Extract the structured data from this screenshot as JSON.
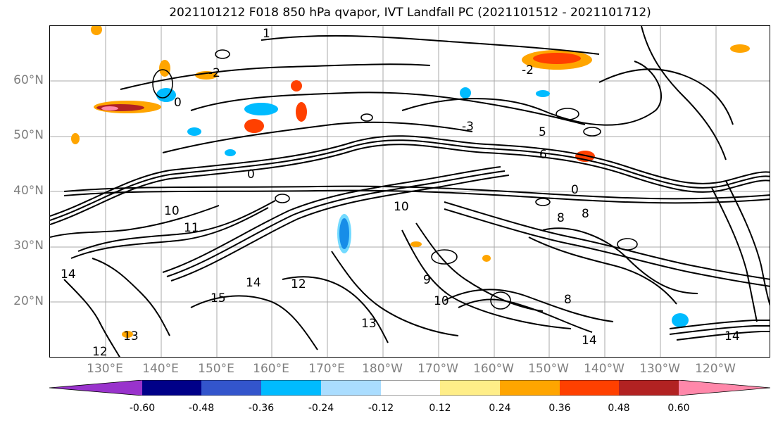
{
  "title": "2021101212 F018 850 hPa qvapor, IVT Landfall PC (2021101512 - 2021101712)",
  "lat_labels": [
    "60°N",
    "50°N",
    "40°N",
    "30°N",
    "20°N"
  ],
  "lon_labels": [
    "130°E",
    "140°E",
    "150°E",
    "160°E",
    "170°E",
    "180°W",
    "170°W",
    "160°W",
    "150°W",
    "140°W",
    "130°W",
    "120°W"
  ],
  "contour_labels": [
    "1",
    "-2",
    "-2",
    "0",
    "-3",
    "5",
    "6",
    "0",
    "0",
    "10",
    "10",
    "8",
    "8",
    "11",
    "14",
    "12",
    "15",
    "13",
    "13",
    "10",
    "14",
    "9",
    "8",
    "14",
    "12",
    "14"
  ],
  "colorbar": {
    "colors": [
      "#9933cc",
      "#000088",
      "#3355cc",
      "#00bbff",
      "#aaddff",
      "#ffffff",
      "#ffee88",
      "#ffa500",
      "#ff4000",
      "#b22222",
      "#ff88aa"
    ],
    "ticks": [
      "-0.60",
      "-0.48",
      "-0.36",
      "-0.24",
      "-0.12",
      "0.12",
      "0.24",
      "0.36",
      "0.48",
      "0.60"
    ]
  }
}
